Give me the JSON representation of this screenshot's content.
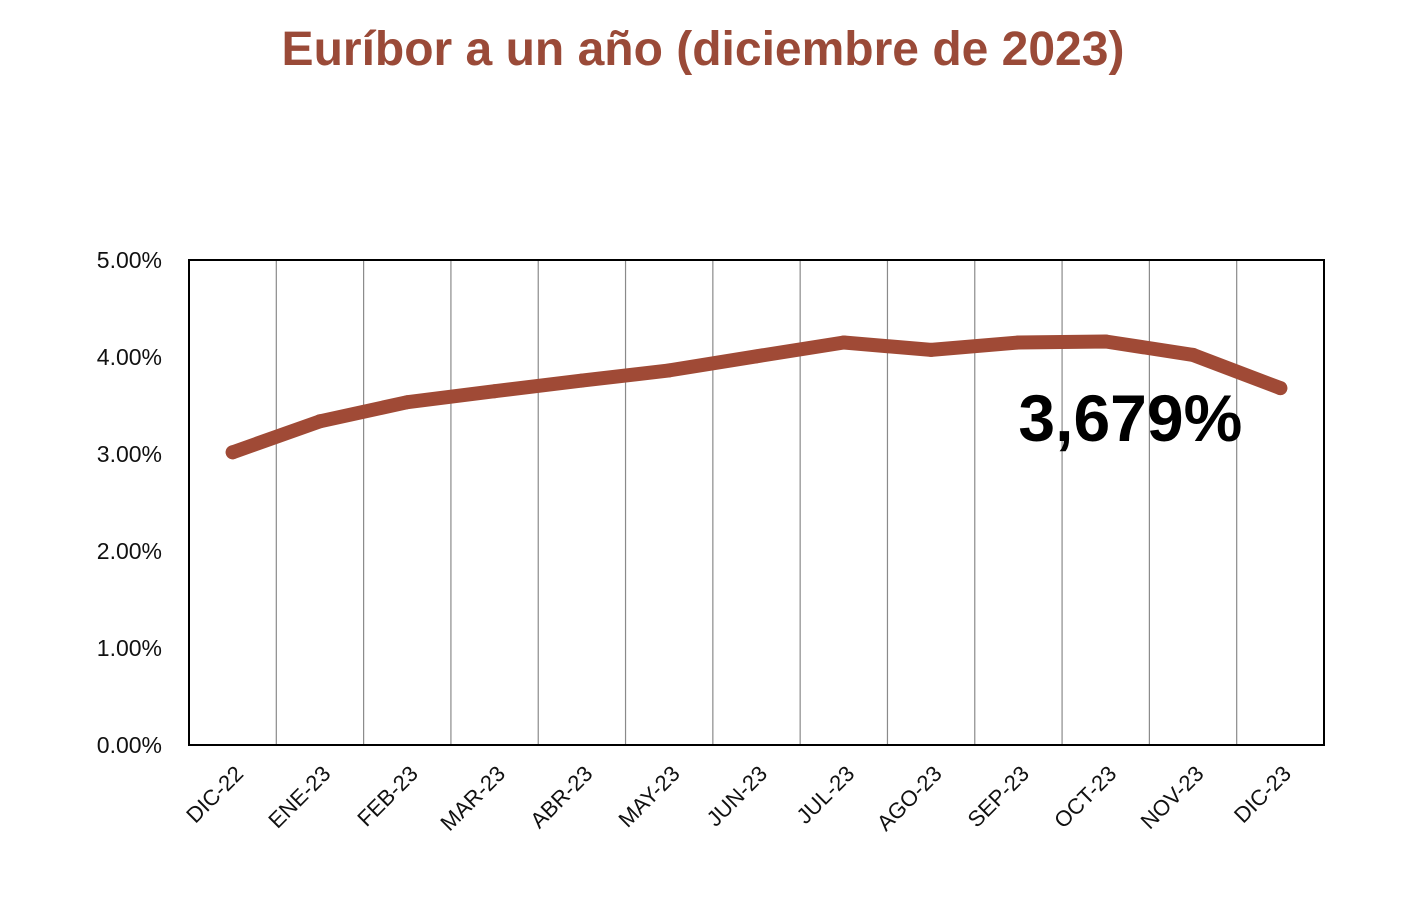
{
  "chart_data": {
    "type": "line",
    "title": "Euríbor a un año (diciembre de 2023)",
    "categories": [
      "DIC-22",
      "ENE-23",
      "FEB-23",
      "MAR-23",
      "ABR-23",
      "MAY-23",
      "JUN-23",
      "JUL-23",
      "AGO-23",
      "SEP-23",
      "OCT-23",
      "NOV-23",
      "DIC-23"
    ],
    "series": [
      {
        "values": [
          3.018,
          3.337,
          3.534,
          3.647,
          3.757,
          3.862,
          4.007,
          4.149,
          4.073,
          4.149,
          4.16,
          4.022,
          3.679
        ]
      }
    ],
    "ylim": [
      0,
      5
    ],
    "yticks": [
      0,
      1,
      2,
      3,
      4,
      5
    ],
    "ytick_labels": [
      "0.00%",
      "1.00%",
      "2.00%",
      "3.00%",
      "4.00%",
      "5.00%"
    ],
    "grid": {
      "vertical": true,
      "horizontal": false
    },
    "line_color": "#a04a36",
    "annotation": {
      "text": "3,679%",
      "category": "DIC-23"
    }
  }
}
